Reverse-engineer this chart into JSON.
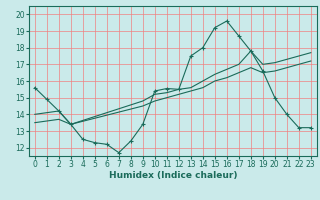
{
  "xlabel": "Humidex (Indice chaleur)",
  "bg_color": "#caeaea",
  "grid_color": "#f08080",
  "line_color": "#1a6b5a",
  "xlim": [
    -0.5,
    23.5
  ],
  "ylim": [
    11.5,
    20.5
  ],
  "xticks": [
    0,
    1,
    2,
    3,
    4,
    5,
    6,
    7,
    8,
    9,
    10,
    11,
    12,
    13,
    14,
    15,
    16,
    17,
    18,
    19,
    20,
    21,
    22,
    23
  ],
  "yticks": [
    12,
    13,
    14,
    15,
    16,
    17,
    18,
    19,
    20
  ],
  "line1_x": [
    0,
    1,
    2,
    3,
    4,
    5,
    6,
    7,
    8,
    9,
    10,
    11,
    12,
    13,
    14,
    15,
    16,
    17,
    18,
    19,
    20,
    21,
    22,
    23
  ],
  "line1_y": [
    15.6,
    14.9,
    14.2,
    13.4,
    12.5,
    12.3,
    12.2,
    11.7,
    12.4,
    13.4,
    15.4,
    15.55,
    15.5,
    17.5,
    18.0,
    19.2,
    19.6,
    18.7,
    17.8,
    16.6,
    15.0,
    14.0,
    13.2,
    13.2
  ],
  "line2_x": [
    0,
    2,
    3,
    9,
    10,
    11,
    12,
    13,
    14,
    15,
    16,
    17,
    18,
    19,
    20,
    21,
    22,
    23
  ],
  "line2_y": [
    14.0,
    14.2,
    13.4,
    14.8,
    15.2,
    15.3,
    15.5,
    15.6,
    16.0,
    16.4,
    16.7,
    17.0,
    17.8,
    17.0,
    17.1,
    17.3,
    17.5,
    17.7
  ],
  "line3_x": [
    0,
    2,
    3,
    9,
    10,
    11,
    12,
    13,
    14,
    15,
    16,
    17,
    18,
    19,
    20,
    21,
    22,
    23
  ],
  "line3_y": [
    13.5,
    13.7,
    13.4,
    14.5,
    14.8,
    15.0,
    15.2,
    15.4,
    15.6,
    16.0,
    16.2,
    16.5,
    16.8,
    16.5,
    16.6,
    16.8,
    17.0,
    17.2
  ]
}
